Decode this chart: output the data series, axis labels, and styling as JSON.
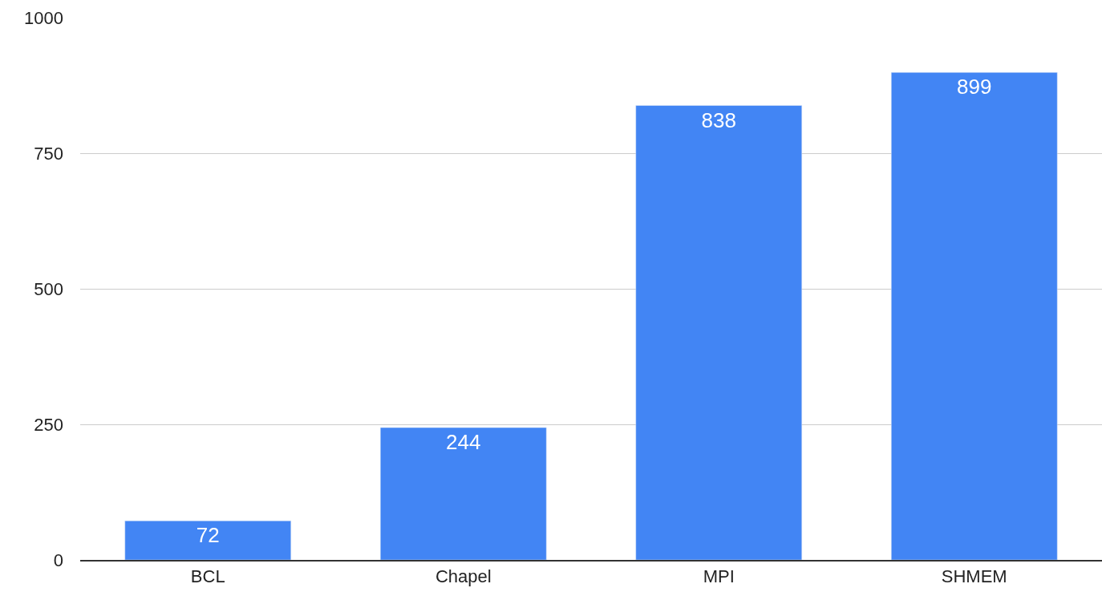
{
  "chart_data": {
    "type": "bar",
    "categories": [
      "BCL",
      "Chapel",
      "MPI",
      "SHMEM"
    ],
    "values": [
      72,
      244,
      838,
      899
    ],
    "color": "#4285f4",
    "ylim": [
      0,
      1000
    ],
    "yticks": [
      0,
      250,
      500,
      750,
      1000
    ],
    "grid": "y",
    "data_labels": true
  }
}
